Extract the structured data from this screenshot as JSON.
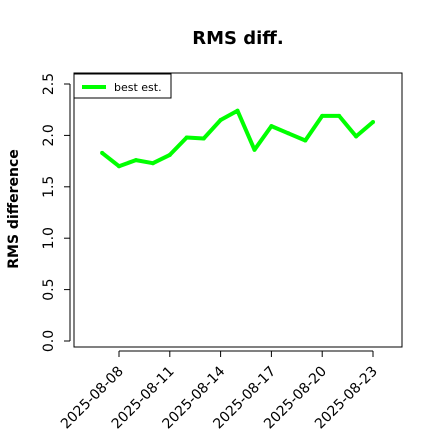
{
  "chart_data": {
    "type": "line",
    "title": "RMS diff.",
    "xlabel": "",
    "ylabel": "RMS difference",
    "ylim": [
      0,
      2.5
    ],
    "yticks": [
      "0.0",
      "0.5",
      "1.0",
      "1.5",
      "2.0",
      "2.5"
    ],
    "xticks": [
      "2025-08-08",
      "2025-08-11",
      "2025-08-14",
      "2025-08-17",
      "2025-08-20",
      "2025-08-23"
    ],
    "grid": false,
    "legend_position": "top-left",
    "series": [
      {
        "name": "best est.",
        "color": "#00ff00",
        "x": [
          "2025-08-07",
          "2025-08-08",
          "2025-08-09",
          "2025-08-10",
          "2025-08-11",
          "2025-08-12",
          "2025-08-13",
          "2025-08-14",
          "2025-08-15",
          "2025-08-16",
          "2025-08-17",
          "2025-08-18",
          "2025-08-19",
          "2025-08-20",
          "2025-08-21",
          "2025-08-22",
          "2025-08-23"
        ],
        "values": [
          1.83,
          1.7,
          1.76,
          1.73,
          1.81,
          1.98,
          1.97,
          2.15,
          2.24,
          1.86,
          2.09,
          2.02,
          1.95,
          2.19,
          2.19,
          1.99,
          2.13
        ]
      }
    ]
  }
}
